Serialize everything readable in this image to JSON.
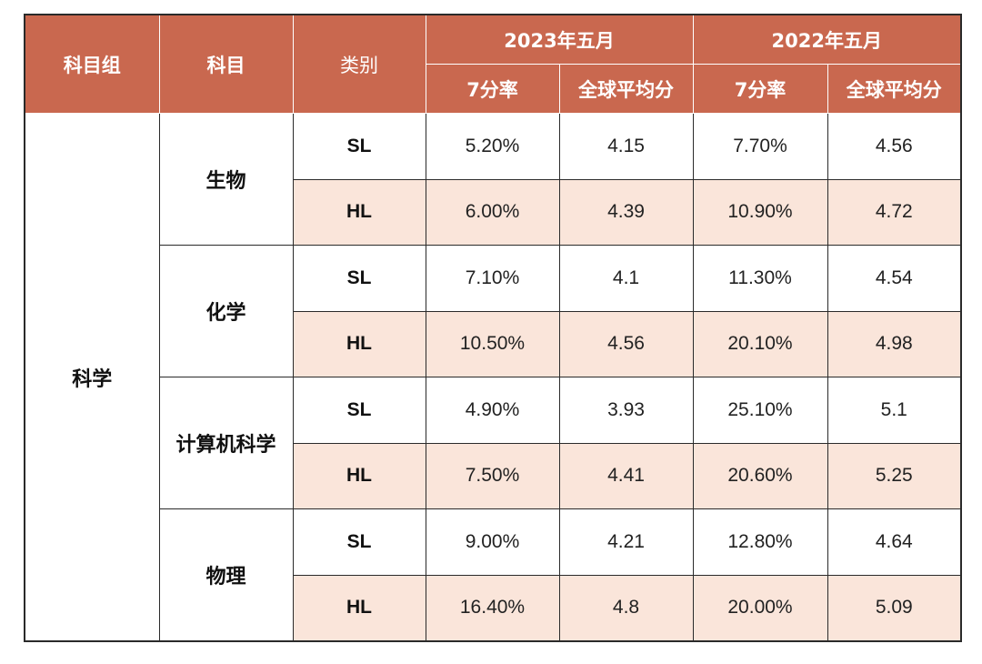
{
  "colors": {
    "header_bg": "#c9684f",
    "header_text": "#ffffff",
    "hl_row_bg": "#fae5da",
    "border": "#2a2a2a"
  },
  "header": {
    "group_label": "科目组",
    "subject_label": "科目",
    "category_label": "类别",
    "year_2023_label": "2023年五月",
    "year_2022_label": "2022年五月",
    "rate_2023_label": "7分率",
    "avg_2023_label": "全球平均分",
    "rate_2022_label": "7分率",
    "avg_2022_label": "全球平均分"
  },
  "group": "科学",
  "rows": [
    {
      "subject": "生物",
      "level": "SL",
      "rate_2023": "5.20%",
      "avg_2023": "4.15",
      "rate_2022": "7.70%",
      "avg_2022": "4.56"
    },
    {
      "subject": "生物",
      "level": "HL",
      "rate_2023": "6.00%",
      "avg_2023": "4.39",
      "rate_2022": "10.90%",
      "avg_2022": "4.72"
    },
    {
      "subject": "化学",
      "level": "SL",
      "rate_2023": "7.10%",
      "avg_2023": "4.1",
      "rate_2022": "11.30%",
      "avg_2022": "4.54"
    },
    {
      "subject": "化学",
      "level": "HL",
      "rate_2023": "10.50%",
      "avg_2023": "4.56",
      "rate_2022": "20.10%",
      "avg_2022": "4.98"
    },
    {
      "subject": "计算机科学",
      "level": "SL",
      "rate_2023": "4.90%",
      "avg_2023": "3.93",
      "rate_2022": "25.10%",
      "avg_2022": "5.1"
    },
    {
      "subject": "计算机科学",
      "level": "HL",
      "rate_2023": "7.50%",
      "avg_2023": "4.41",
      "rate_2022": "20.60%",
      "avg_2022": "5.25"
    },
    {
      "subject": "物理",
      "level": "SL",
      "rate_2023": "9.00%",
      "avg_2023": "4.21",
      "rate_2022": "12.80%",
      "avg_2022": "4.64"
    },
    {
      "subject": "物理",
      "level": "HL",
      "rate_2023": "16.40%",
      "avg_2023": "4.8",
      "rate_2022": "20.00%",
      "avg_2022": "5.09"
    }
  ]
}
